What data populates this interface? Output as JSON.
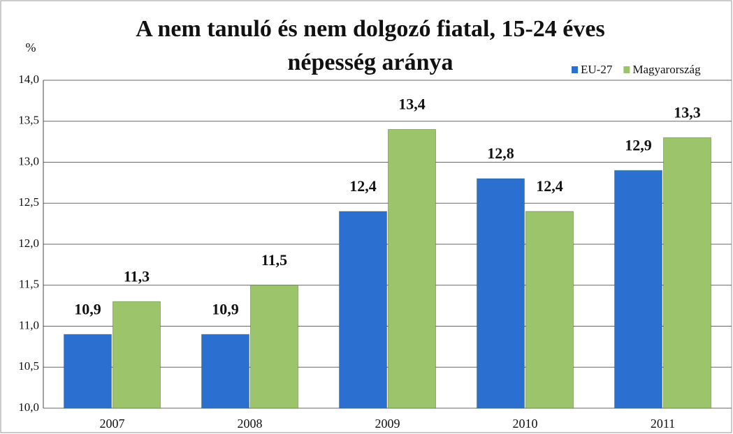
{
  "chart_data": {
    "type": "bar",
    "title": "A nem tanuló és nem dolgozó fiatal, 15-24 éves népesség aránya",
    "y_label": "%",
    "categories": [
      "2007",
      "2008",
      "2009",
      "2010",
      "2011"
    ],
    "series": [
      {
        "name": "EU-27",
        "color": "#2b6fd1",
        "values": [
          10.9,
          10.9,
          12.4,
          12.8,
          12.9
        ],
        "value_labels": [
          "10,9",
          "10,9",
          "12,4",
          "12,8",
          "12,9"
        ]
      },
      {
        "name": "Magyarország",
        "color": "#9cc46a",
        "values": [
          11.3,
          11.5,
          13.4,
          12.4,
          13.3
        ],
        "value_labels": [
          "11,3",
          "11,5",
          "13,4",
          "12,4",
          "13,3"
        ]
      }
    ],
    "ylim": [
      10,
      14
    ],
    "yticks": [
      {
        "value": 10,
        "label": "10,0"
      },
      {
        "value": 10.5,
        "label": "10,5"
      },
      {
        "value": 11,
        "label": "11,0"
      },
      {
        "value": 11.5,
        "label": "11,5"
      },
      {
        "value": 12,
        "label": "12,0"
      },
      {
        "value": 12.5,
        "label": "12,5"
      },
      {
        "value": 13,
        "label": "13,0"
      },
      {
        "value": 13.5,
        "label": "13,5"
      },
      {
        "value": 14,
        "label": "14,0"
      }
    ],
    "grid": true,
    "legend": "top-right"
  }
}
